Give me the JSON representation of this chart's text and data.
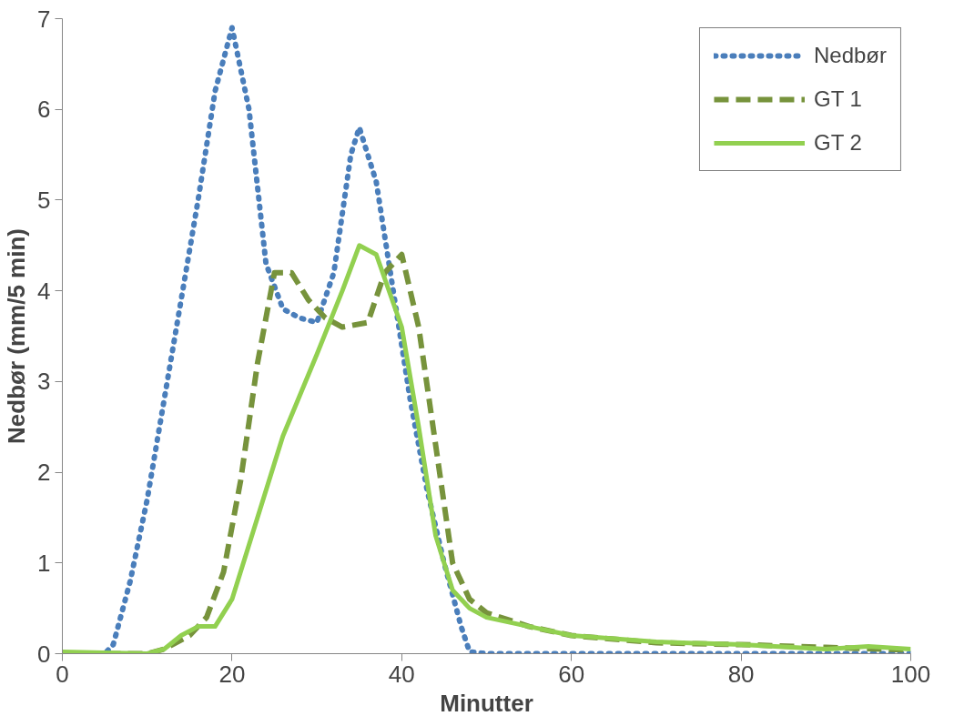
{
  "chart_data": {
    "type": "line",
    "xlabel": "Minutter",
    "ylabel": "Nedbør (mm/5 min)",
    "xlim": [
      0,
      100
    ],
    "ylim": [
      0,
      7
    ],
    "xticks": [
      0,
      20,
      40,
      60,
      80,
      100
    ],
    "yticks": [
      0,
      1,
      2,
      3,
      4,
      5,
      6,
      7
    ],
    "grid": false,
    "legend": "top right",
    "marker": "none",
    "series": [
      {
        "name": "Nedbør",
        "color": "#4a7ebb",
        "line_style": "dotted",
        "x": [
          0,
          5,
          6,
          8,
          10,
          12,
          14,
          16,
          18,
          20,
          22,
          24,
          26,
          28,
          30,
          32,
          34,
          35,
          37,
          39,
          41,
          43,
          45,
          47,
          48,
          50,
          100
        ],
        "values": [
          0,
          0,
          0.1,
          0.8,
          1.7,
          2.8,
          3.9,
          5.0,
          6.2,
          6.9,
          6.0,
          4.3,
          3.8,
          3.7,
          3.65,
          4.2,
          5.5,
          5.8,
          5.2,
          4.0,
          2.8,
          1.8,
          1.0,
          0.3,
          0.02,
          0,
          0
        ]
      },
      {
        "name": "GT 1",
        "color": "#77933c",
        "line_style": "dashed",
        "x": [
          0,
          10,
          12,
          15,
          17,
          19,
          21,
          23,
          25,
          27,
          29,
          31,
          33,
          36,
          38,
          40,
          42,
          44,
          46,
          48,
          50,
          55,
          60,
          70,
          80,
          90,
          100
        ],
        "values": [
          0,
          0,
          0.05,
          0.2,
          0.4,
          0.9,
          1.9,
          3.2,
          4.2,
          4.2,
          3.9,
          3.7,
          3.6,
          3.65,
          4.2,
          4.4,
          3.6,
          2.3,
          1.0,
          0.6,
          0.45,
          0.3,
          0.2,
          0.12,
          0.1,
          0.07,
          0.04
        ]
      },
      {
        "name": "GT 2",
        "color": "#92d050",
        "line_style": "solid",
        "x": [
          0,
          5,
          10,
          12,
          14,
          16,
          18,
          20,
          23,
          26,
          30,
          33,
          35,
          37,
          40,
          42,
          44,
          46,
          48,
          50,
          55,
          60,
          70,
          80,
          90,
          95,
          100
        ],
        "values": [
          0.02,
          0.01,
          0,
          0.05,
          0.2,
          0.3,
          0.3,
          0.6,
          1.5,
          2.4,
          3.3,
          4.0,
          4.5,
          4.4,
          3.6,
          2.5,
          1.3,
          0.7,
          0.5,
          0.4,
          0.3,
          0.2,
          0.13,
          0.1,
          0.05,
          0.08,
          0.05
        ]
      }
    ]
  }
}
